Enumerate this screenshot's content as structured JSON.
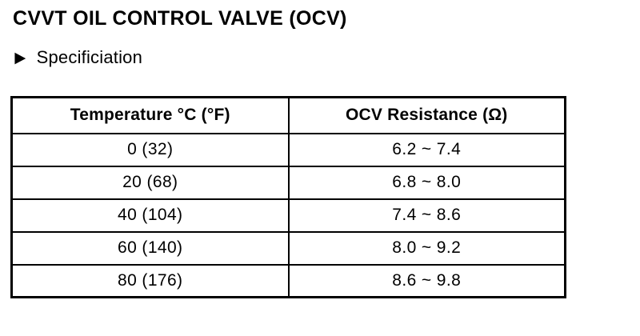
{
  "page": {
    "title": "CVVT OIL CONTROL VALVE (OCV)"
  },
  "section": {
    "bullet_glyph": "▶",
    "label": "Specificiation"
  },
  "table": {
    "headers": [
      "Temperature °C (°F)",
      "OCV Resistance (Ω)"
    ],
    "rows": [
      [
        "0 (32)",
        "6.2 ~ 7.4"
      ],
      [
        "20 (68)",
        "6.8 ~ 8.0"
      ],
      [
        "40 (104)",
        "7.4 ~ 8.6"
      ],
      [
        "60 (140)",
        "8.0 ~ 9.2"
      ],
      [
        "80 (176)",
        "8.6 ~ 9.8"
      ]
    ]
  },
  "colors": {
    "text": "#000000",
    "background": "#ffffff",
    "border": "#000000"
  }
}
